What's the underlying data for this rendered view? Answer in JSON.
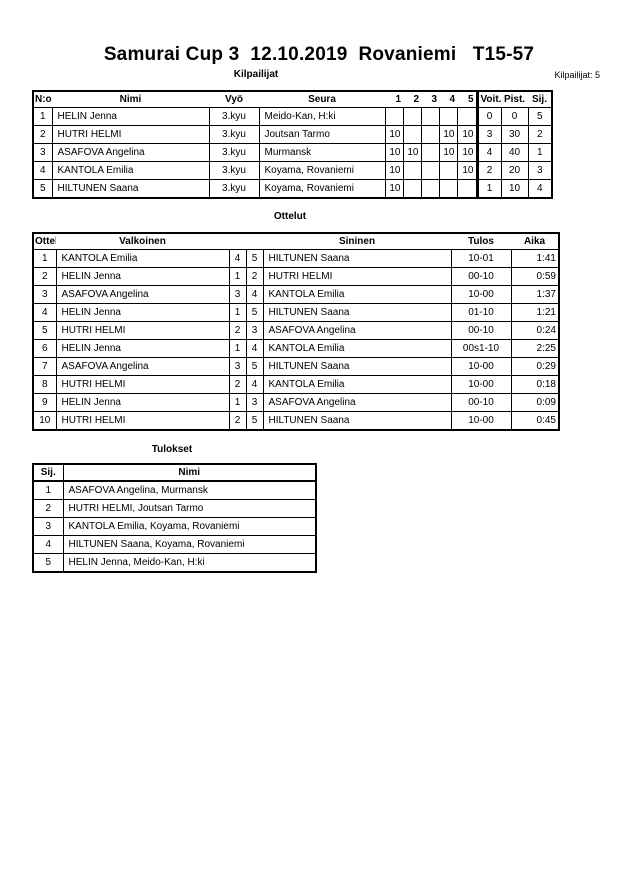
{
  "title": "Samurai Cup 3  12.10.2019  Rovaniemi   T15-57",
  "competitors": {
    "heading": "Kilpailijat",
    "count_label": "Kilpailijat: 5",
    "headers": [
      "N:o",
      "Nimi",
      "Vyö",
      "Seura",
      "1",
      "2",
      "3",
      "4",
      "5",
      "Voit.",
      "Pist.",
      "Sij."
    ],
    "rows": [
      [
        "1",
        "HELIN Jenna",
        "3.kyu",
        "Meido-Kan, H:ki",
        "",
        "",
        "",
        "",
        "",
        "0",
        "0",
        "5"
      ],
      [
        "2",
        "HUTRI HELMI",
        "3.kyu",
        "Joutsan Tarmo",
        "10",
        "",
        "",
        "10",
        "10",
        "3",
        "30",
        "2"
      ],
      [
        "3",
        "ASAFOVA Angelina",
        "3.kyu",
        "Murmansk",
        "10",
        "10",
        "",
        "10",
        "10",
        "4",
        "40",
        "1"
      ],
      [
        "4",
        "KANTOLA Emilia",
        "3.kyu",
        "Koyama, Rovaniemi",
        "10",
        "",
        "",
        "",
        "10",
        "2",
        "20",
        "3"
      ],
      [
        "5",
        "HILTUNEN Saana",
        "3.kyu",
        "Koyama, Rovaniemi",
        "10",
        "",
        "",
        "",
        "",
        "1",
        "10",
        "4"
      ]
    ]
  },
  "matches": {
    "heading": "Ottelut",
    "headers": [
      "Ottelu",
      "Valkoinen",
      "Sininen",
      "Tulos",
      "Aika"
    ],
    "rows": [
      [
        "1",
        "KANTOLA Emilia",
        "4",
        "5",
        "HILTUNEN Saana",
        "10-01",
        "1:41"
      ],
      [
        "2",
        "HELIN Jenna",
        "1",
        "2",
        "HUTRI HELMI",
        "00-10",
        "0:59"
      ],
      [
        "3",
        "ASAFOVA Angelina",
        "3",
        "4",
        "KANTOLA Emilia",
        "10-00",
        "1:37"
      ],
      [
        "4",
        "HELIN Jenna",
        "1",
        "5",
        "HILTUNEN Saana",
        "01-10",
        "1:21"
      ],
      [
        "5",
        "HUTRI HELMI",
        "2",
        "3",
        "ASAFOVA Angelina",
        "00-10",
        "0:24"
      ],
      [
        "6",
        "HELIN Jenna",
        "1",
        "4",
        "KANTOLA Emilia",
        "00s1-10",
        "2:25"
      ],
      [
        "7",
        "ASAFOVA Angelina",
        "3",
        "5",
        "HILTUNEN Saana",
        "10-00",
        "0:29"
      ],
      [
        "8",
        "HUTRI HELMI",
        "2",
        "4",
        "KANTOLA Emilia",
        "10-00",
        "0:18"
      ],
      [
        "9",
        "HELIN Jenna",
        "1",
        "3",
        "ASAFOVA Angelina",
        "00-10",
        "0:09"
      ],
      [
        "10",
        "HUTRI HELMI",
        "2",
        "5",
        "HILTUNEN Saana",
        "10-00",
        "0:45"
      ]
    ]
  },
  "results": {
    "heading": "Tulokset",
    "headers": [
      "Sij.",
      "Nimi"
    ],
    "rows": [
      [
        "1",
        "ASAFOVA Angelina, Murmansk"
      ],
      [
        "2",
        "HUTRI HELMI, Joutsan Tarmo"
      ],
      [
        "3",
        "KANTOLA Emilia, Koyama, Rovaniemi"
      ],
      [
        "4",
        "HILTUNEN Saana, Koyama, Rovaniemi"
      ],
      [
        "5",
        "HELIN Jenna, Meido-Kan, H:ki"
      ]
    ]
  }
}
